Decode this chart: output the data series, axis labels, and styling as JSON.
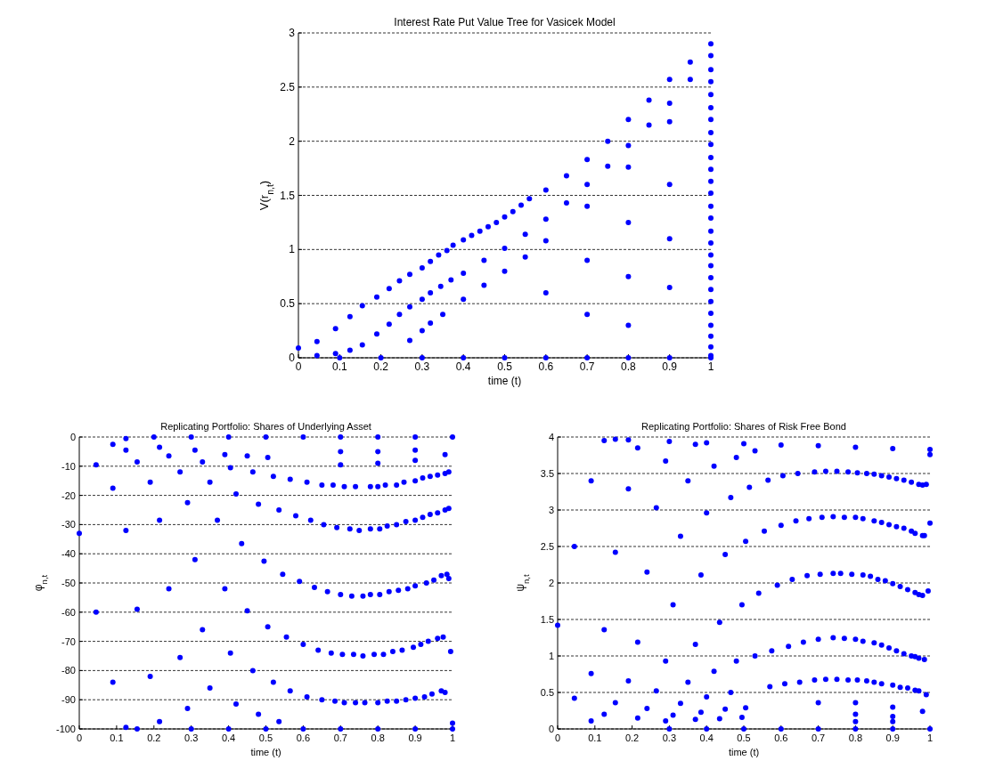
{
  "chart_data": [
    {
      "type": "scatter",
      "title": "Interest Rate Put Value Tree for Vasicek Model",
      "xlabel": "time (t)",
      "ylabel": "V(r$_{n,t}$)",
      "color": "#0000ff",
      "marker": "circle",
      "grid": "y",
      "xlim": [
        0,
        1
      ],
      "xticks": [
        0,
        0.1,
        0.2,
        0.3,
        0.4,
        0.5,
        0.6,
        0.7,
        0.8,
        0.9,
        1
      ],
      "ylim": [
        0,
        3
      ],
      "yticks": [
        0,
        0.5,
        1,
        1.5,
        2,
        2.5,
        3
      ],
      "x": [
        0,
        0.045,
        0.09,
        0.125,
        0.155,
        0.19,
        0.22,
        0.245,
        0.27,
        0.3,
        0.32,
        0.34,
        0.36,
        0.375,
        0.4,
        0.42,
        0.44,
        0.46,
        0.48,
        0.5,
        0.52,
        0.54,
        0.56,
        0.6,
        0.65,
        0.7,
        0.75,
        0.8,
        0.85,
        0.9,
        0.95,
        1,
        0.045,
        0.09,
        0.125,
        0.155,
        0.19,
        0.22,
        0.245,
        0.27,
        0.3,
        0.32,
        0.345,
        0.37,
        0.4,
        0.45,
        0.5,
        0.55,
        0.6,
        0.65,
        0.7,
        0.75,
        0.8,
        0.85,
        0.9,
        0.95,
        1,
        0.27,
        0.3,
        0.32,
        0.35,
        0.4,
        0.45,
        0.5,
        0.55,
        0.6,
        0.7,
        0.8,
        0.9,
        1,
        1,
        1,
        1,
        1,
        1,
        1,
        1,
        1,
        1,
        1,
        1,
        1,
        1,
        1,
        1,
        1,
        1,
        1,
        1,
        1,
        1,
        1,
        1,
        1,
        0.6,
        0.7,
        0.8,
        0.9,
        0.7,
        0.8,
        0.9,
        0.8,
        0.9,
        0.1,
        0.2,
        0.3,
        0.4,
        0.5,
        0.6,
        0.7,
        0.8,
        0.9,
        1
      ],
      "values": [
        0.09,
        0.15,
        0.27,
        0.38,
        0.48,
        0.56,
        0.64,
        0.71,
        0.77,
        0.83,
        0.89,
        0.95,
        0.99,
        1.04,
        1.09,
        1.13,
        1.17,
        1.21,
        1.25,
        1.3,
        1.35,
        1.41,
        1.47,
        1.55,
        1.68,
        1.83,
        2.0,
        2.2,
        2.38,
        2.57,
        2.73,
        2.9,
        0.02,
        0.04,
        0.07,
        0.12,
        0.22,
        0.31,
        0.4,
        0.47,
        0.54,
        0.6,
        0.66,
        0.72,
        0.78,
        0.9,
        1.01,
        1.14,
        1.28,
        1.43,
        1.6,
        1.77,
        1.96,
        2.15,
        2.35,
        2.57,
        2.79,
        0.16,
        0.25,
        0.32,
        0.4,
        0.54,
        0.67,
        0.8,
        0.93,
        1.08,
        1.4,
        1.76,
        2.18,
        2.66,
        2.55,
        2.43,
        2.31,
        2.2,
        2.08,
        1.97,
        1.85,
        1.74,
        1.63,
        1.52,
        1.4,
        1.29,
        1.17,
        1.06,
        0.95,
        0.85,
        0.74,
        0.63,
        0.52,
        0.41,
        0.3,
        0.2,
        0.1,
        0.02,
        0.6,
        0.9,
        1.25,
        1.6,
        0.4,
        0.75,
        1.1,
        0.3,
        0.65,
        0,
        0,
        0,
        0,
        0,
        0,
        0,
        0,
        0,
        0
      ]
    },
    {
      "type": "scatter",
      "title": "Replicating Portfolio: Shares of Underlying Asset",
      "xlabel": "time (t)",
      "ylabel": "φ$_{n,t}$",
      "color": "#0000ff",
      "marker": "circle",
      "grid": "y",
      "xlim": [
        0,
        1
      ],
      "xticks": [
        0,
        0.1,
        0.2,
        0.3,
        0.4,
        0.5,
        0.6,
        0.7,
        0.8,
        0.9,
        1
      ],
      "ylim": [
        -100,
        0
      ],
      "yticks": [
        -100,
        -90,
        -80,
        -70,
        -60,
        -50,
        -40,
        -30,
        -20,
        -10,
        0
      ],
      "x": [
        0,
        0.045,
        0.045,
        0.09,
        0.09,
        0.09,
        0.125,
        0.125,
        0.125,
        0.125,
        0.155,
        0.155,
        0.155,
        0.19,
        0.19,
        0.215,
        0.215,
        0.215,
        0.24,
        0.24,
        0.27,
        0.27,
        0.29,
        0.29,
        0.31,
        0.31,
        0.33,
        0.33,
        0.35,
        0.35,
        0.37,
        0.39,
        0.39,
        0.405,
        0.405,
        0.42,
        0.42,
        0.435,
        0.45,
        0.45,
        0.465,
        0.465,
        0.48,
        0.48,
        0.495,
        0.505,
        0.505,
        0.52,
        0.52,
        0.535,
        0.535,
        0.545,
        0.555,
        0.565,
        0.565,
        0.58,
        0.59,
        0.6,
        0.61,
        0.61,
        0.62,
        0.63,
        0.64,
        0.65,
        0.65,
        0.655,
        0.665,
        0.675,
        0.68,
        0.685,
        0.69,
        0.7,
        0.705,
        0.71,
        0.71,
        0.725,
        0.73,
        0.735,
        0.74,
        0.74,
        0.75,
        0.76,
        0.76,
        0.765,
        0.78,
        0.78,
        0.78,
        0.79,
        0.8,
        0.8,
        0.805,
        0.805,
        0.815,
        0.82,
        0.825,
        0.825,
        0.83,
        0.84,
        0.85,
        0.85,
        0.85,
        0.855,
        0.865,
        0.87,
        0.875,
        0.875,
        0.88,
        0.895,
        0.9,
        0.9,
        0.9,
        0.9,
        0.915,
        0.92,
        0.92,
        0.925,
        0.93,
        0.935,
        0.94,
        0.94,
        0.945,
        0.95,
        0.96,
        0.96,
        0.96,
        0.97,
        0.97,
        0.975,
        0.98,
        0.98,
        0.98,
        0.985,
        0.99,
        0.99,
        0.99,
        0.995,
        1,
        0.7,
        0.8,
        0.9,
        0.98,
        0.7,
        0.8,
        0.9,
        0.2,
        0.3,
        0.4,
        0.5,
        0.6,
        0.7,
        0.8,
        0.9,
        1,
        0.3,
        0.4,
        0.5,
        0.6,
        0.7,
        0.8,
        0.9,
        1
      ],
      "values": [
        -33,
        -9.5,
        -60,
        -2.5,
        -17.5,
        -84,
        -0.5,
        -4.5,
        -32,
        -99.5,
        -8.5,
        -59,
        -100,
        -15.5,
        -82,
        -3.5,
        -28.5,
        -97.5,
        -6.5,
        -52,
        -12,
        -75.5,
        -22.5,
        -93,
        -4.5,
        -42,
        -8.5,
        -66,
        -15.5,
        -86,
        -28.5,
        -6,
        -52,
        -10.5,
        -74,
        -19.5,
        -91.5,
        -36.5,
        -6.5,
        -59.5,
        -12,
        -80,
        -23,
        -95,
        -42.5,
        -7,
        -65,
        -13.5,
        -84,
        -25,
        -97.5,
        -47,
        -68.5,
        -14.5,
        -87,
        -27,
        -49.5,
        -71,
        -15.5,
        -89,
        -28.5,
        -51.5,
        -73,
        -16.5,
        -90,
        -30,
        -53,
        -74,
        -16.5,
        -90.5,
        -31,
        -54,
        -74.5,
        -17,
        -91,
        -31.5,
        -54.5,
        -74.5,
        -17,
        -91,
        -32,
        -54.5,
        -75,
        -91,
        -17,
        -31.5,
        -54,
        -74.5,
        -17,
        -91,
        -31.5,
        -54,
        -74.5,
        -16.5,
        -90.5,
        -30.5,
        -53,
        -73.5,
        -16.5,
        -90.5,
        -30,
        -52.5,
        -73,
        -15.5,
        -90,
        -29,
        -52,
        -72,
        -15,
        -28.5,
        -89.5,
        -51,
        -71,
        -14,
        -27.5,
        -89,
        -50,
        -70,
        -13.5,
        -26.5,
        -88,
        -49,
        -69,
        -13,
        -26,
        -87,
        -47.5,
        -68.5,
        -12.5,
        -25,
        -87.5,
        -47,
        -12,
        -24.5,
        -48.5,
        -73.5,
        -98,
        -9.5,
        -9,
        -8,
        -6,
        -5,
        -5,
        -4.5,
        0,
        0,
        0,
        0,
        0,
        0,
        0,
        0,
        0,
        -100,
        -100,
        -100,
        -100,
        -100,
        -100,
        -100,
        -100
      ]
    },
    {
      "type": "scatter",
      "title": "Replicating Portfolio: Shares of Risk Free Bond",
      "xlabel": "time (t)",
      "ylabel": "ψ$_{n,t}$",
      "color": "#0000ff",
      "marker": "circle",
      "grid": "y",
      "xlim": [
        0,
        1
      ],
      "xticks": [
        0,
        0.1,
        0.2,
        0.3,
        0.4,
        0.5,
        0.6,
        0.7,
        0.8,
        0.9,
        1
      ],
      "ylim": [
        0,
        4
      ],
      "yticks": [
        0,
        0.5,
        1,
        1.5,
        2,
        2.5,
        3,
        3.5,
        4
      ],
      "x": [
        0,
        0.045,
        0.045,
        0.09,
        0.09,
        0.09,
        0.125,
        0.125,
        0.125,
        0.155,
        0.155,
        0.155,
        0.19,
        0.19,
        0.19,
        0.215,
        0.215,
        0.215,
        0.24,
        0.24,
        0.265,
        0.265,
        0.29,
        0.29,
        0.29,
        0.31,
        0.31,
        0.33,
        0.33,
        0.35,
        0.35,
        0.37,
        0.37,
        0.37,
        0.385,
        0.385,
        0.4,
        0.4,
        0.42,
        0.42,
        0.435,
        0.435,
        0.45,
        0.45,
        0.465,
        0.465,
        0.48,
        0.48,
        0.495,
        0.495,
        0.505,
        0.505,
        0.515,
        0.53,
        0.53,
        0.54,
        0.555,
        0.565,
        0.57,
        0.575,
        0.59,
        0.6,
        0.605,
        0.61,
        0.62,
        0.63,
        0.64,
        0.645,
        0.65,
        0.66,
        0.67,
        0.675,
        0.69,
        0.69,
        0.7,
        0.705,
        0.71,
        0.72,
        0.72,
        0.74,
        0.74,
        0.74,
        0.75,
        0.75,
        0.76,
        0.77,
        0.77,
        0.78,
        0.78,
        0.79,
        0.8,
        0.8,
        0.805,
        0.805,
        0.82,
        0.82,
        0.82,
        0.83,
        0.83,
        0.84,
        0.85,
        0.85,
        0.85,
        0.85,
        0.86,
        0.87,
        0.87,
        0.87,
        0.87,
        0.88,
        0.89,
        0.89,
        0.89,
        0.9,
        0.9,
        0.91,
        0.91,
        0.91,
        0.92,
        0.92,
        0.93,
        0.93,
        0.93,
        0.94,
        0.94,
        0.95,
        0.95,
        0.95,
        0.96,
        0.96,
        0.96,
        0.96,
        0.97,
        0.97,
        0.97,
        0.97,
        0.98,
        0.98,
        0.98,
        0.985,
        0.985,
        0.99,
        0.99,
        0.995,
        1,
        1,
        1,
        0.3,
        0.4,
        0.5,
        0.6,
        0.7,
        0.8,
        0.9,
        0.7,
        0.8,
        0.9,
        0.98,
        0.8,
        0.9,
        0.8,
        0.9,
        0.3,
        0.4,
        0.5,
        0.6,
        0.7,
        0.8,
        0.9,
        1
      ],
      "values": [
        1.42,
        2.5,
        0.42,
        3.4,
        0.76,
        0.11,
        3.95,
        1.36,
        0.2,
        3.97,
        2.42,
        0.36,
        3.96,
        3.29,
        0.66,
        3.85,
        1.19,
        0.15,
        2.15,
        0.28,
        3.03,
        0.52,
        3.67,
        0.93,
        0.11,
        1.7,
        0.19,
        2.64,
        0.35,
        3.4,
        0.64,
        3.9,
        1.16,
        0.13,
        2.11,
        0.23,
        2.96,
        0.44,
        3.6,
        0.79,
        1.46,
        0.14,
        2.39,
        0.27,
        3.17,
        0.5,
        3.72,
        0.93,
        1.7,
        0.16,
        2.57,
        0.29,
        3.31,
        3.81,
        1.0,
        1.86,
        2.71,
        3.41,
        0.58,
        1.07,
        1.97,
        2.79,
        3.47,
        0.62,
        1.13,
        2.05,
        2.85,
        3.5,
        0.64,
        1.19,
        2.1,
        2.88,
        3.52,
        0.67,
        1.23,
        2.12,
        2.9,
        3.53,
        0.68,
        1.25,
        2.13,
        2.91,
        3.53,
        0.68,
        2.13,
        1.24,
        2.9,
        3.52,
        0.67,
        2.12,
        1.23,
        2.9,
        3.51,
        0.67,
        2.11,
        1.2,
        2.88,
        3.5,
        0.66,
        2.09,
        1.18,
        2.85,
        3.49,
        0.64,
        2.05,
        1.15,
        2.83,
        3.47,
        0.62,
        2.03,
        1.11,
        2.8,
        3.45,
        0.6,
        1.99,
        1.07,
        2.77,
        3.43,
        0.57,
        1.95,
        1.03,
        2.75,
        3.41,
        0.56,
        1.91,
        1.0,
        2.71,
        3.38,
        0.53,
        1.87,
        0.99,
        2.68,
        3.35,
        0.52,
        1.84,
        0.97,
        2.65,
        3.34,
        1.83,
        0.95,
        2.65,
        3.35,
        0.47,
        1.89,
        2.82,
        3.76,
        3.83,
        3.94,
        3.92,
        3.91,
        3.89,
        3.88,
        3.86,
        3.84,
        0.36,
        0.36,
        0.3,
        0.24,
        0.2,
        0.17,
        0.1,
        0.1,
        0,
        0,
        0,
        0,
        0,
        0,
        0,
        0
      ]
    }
  ]
}
